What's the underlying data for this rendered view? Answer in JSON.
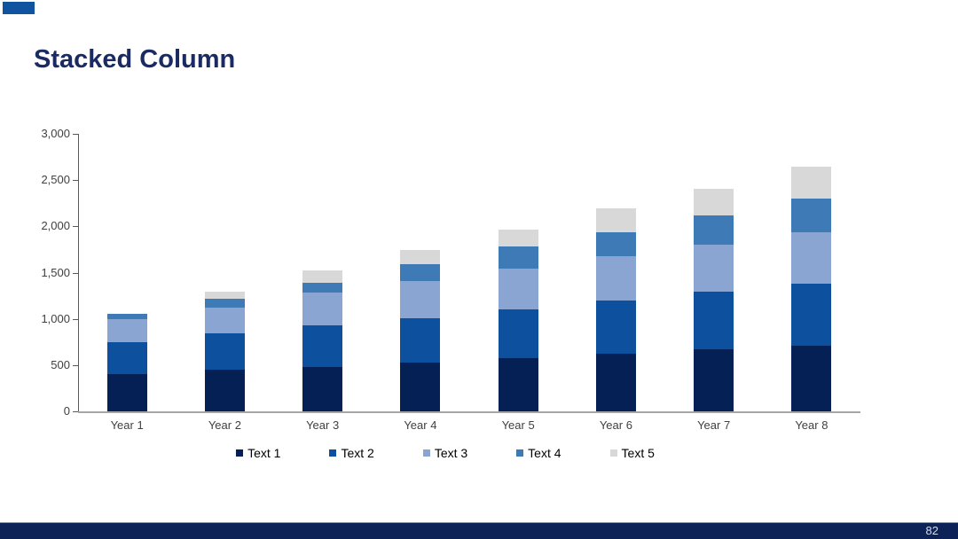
{
  "slide": {
    "title": "Stacked Column",
    "page_number": "82"
  },
  "colors": {
    "accent_rect": "#10549f",
    "title_navy": "#1a2a63",
    "footer_navy": "#0d2357",
    "axis_dark": "#595959",
    "axis_light": "#a6a6a6",
    "tick_label": "#404040"
  },
  "chart_data": {
    "type": "bar",
    "stacked": true,
    "title": "",
    "xlabel": "",
    "ylabel": "",
    "categories": [
      "Year 1",
      "Year 2",
      "Year 3",
      "Year 4",
      "Year 5",
      "Year 6",
      "Year 7",
      "Year 8"
    ],
    "series": [
      {
        "name": "Text 1",
        "color": "#052055",
        "values": [
          400,
          450,
          480,
          530,
          575,
          625,
          670,
          710
        ]
      },
      {
        "name": "Text 2",
        "color": "#0d509e",
        "values": [
          350,
          390,
          450,
          480,
          525,
          575,
          620,
          670
        ]
      },
      {
        "name": "Text 3",
        "color": "#8aa5d1",
        "values": [
          250,
          280,
          355,
          400,
          445,
          475,
          510,
          555
        ]
      },
      {
        "name": "Text 4",
        "color": "#3e7ab5",
        "values": [
          50,
          100,
          105,
          180,
          235,
          260,
          320,
          365
        ]
      },
      {
        "name": "Text 5",
        "color": "#d8d8d8",
        "values": [
          0,
          75,
          130,
          155,
          185,
          260,
          285,
          345
        ]
      }
    ],
    "totals": [
      1050,
      1295,
      1520,
      1745,
      1965,
      2195,
      2405,
      2645
    ],
    "ylim": [
      0,
      3000
    ],
    "ytick_interval": 500,
    "ytick_labels": [
      "0",
      "500",
      "1,000",
      "1,500",
      "2,000",
      "2,500",
      "3,000"
    ],
    "grid": false,
    "legend_position": "bottom"
  }
}
